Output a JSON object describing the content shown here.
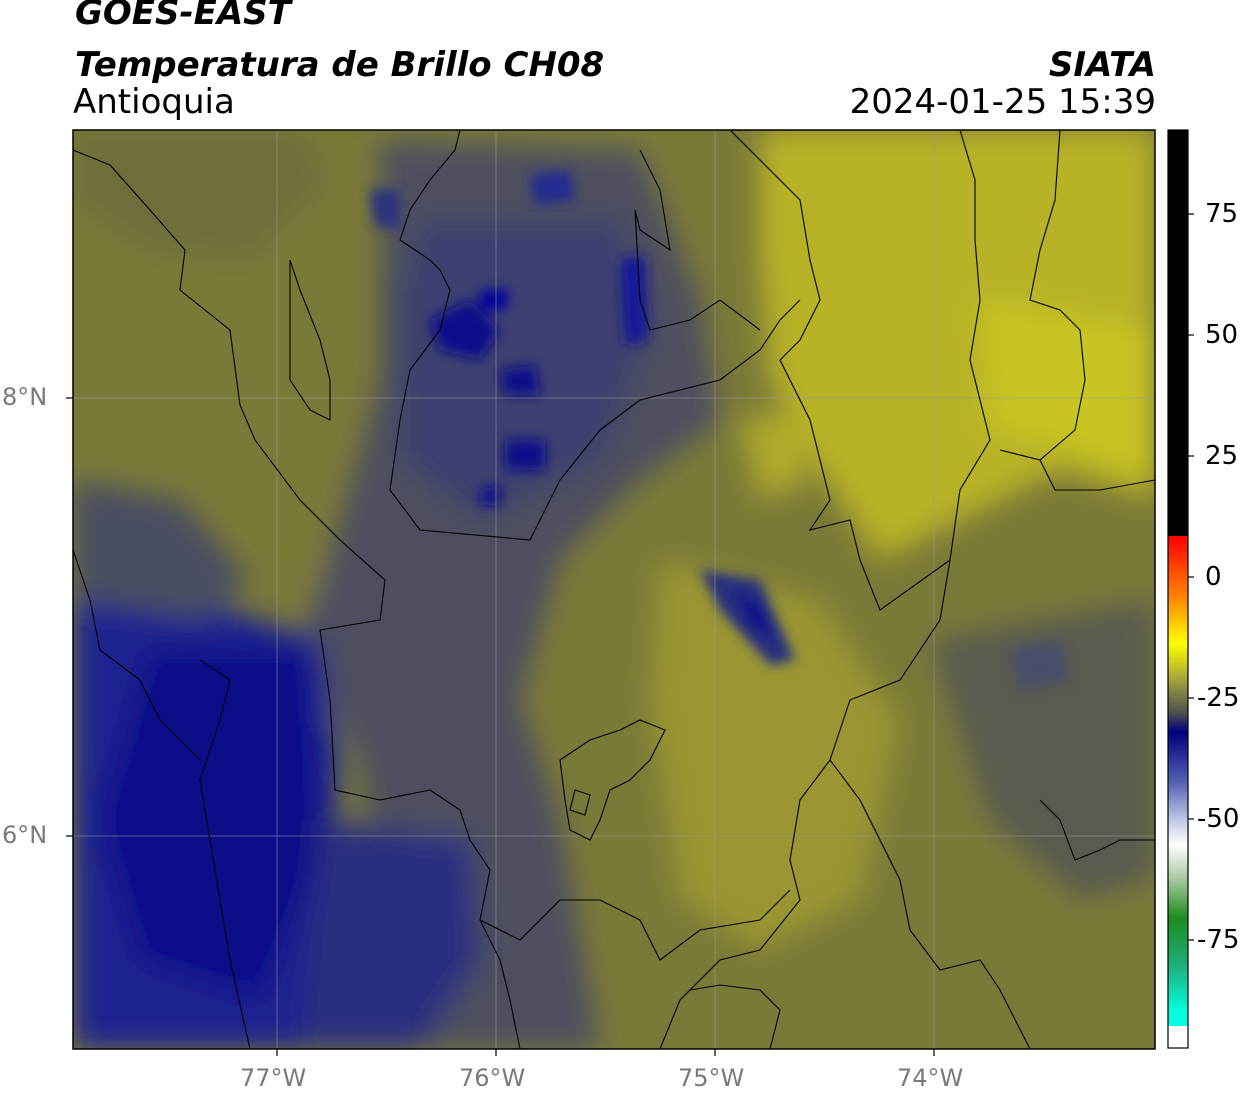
{
  "header": {
    "satellite": "GOES-EAST",
    "product": "Temperatura de Brillo CH08",
    "region": "Antioquia",
    "agency": "SIATA",
    "datetime": "2024-01-25 15:39"
  },
  "map": {
    "x_ticks": [
      "77°W",
      "76°W",
      "75°W",
      "74°W"
    ],
    "y_ticks": [
      "8°N",
      "6°N"
    ],
    "colorbar_ticks": [
      "75",
      "50",
      "25",
      "0",
      "-25",
      "-50",
      "-75"
    ],
    "colorbar_colors": {
      "black": "#000000",
      "red": "#ff0000",
      "yellow": "#ffff00",
      "olive_gray": "#5a5a3a",
      "navy": "#000080",
      "white": "#ffffff",
      "green": "#1e8c1e",
      "cyan": "#00ffe0"
    }
  }
}
